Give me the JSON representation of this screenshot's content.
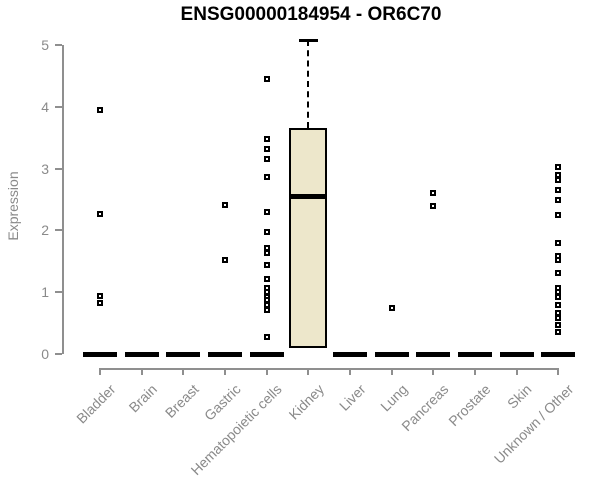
{
  "chart_data": {
    "type": "boxplot",
    "title": "ENSG00000184954 - OR6C70",
    "xlabel": "",
    "ylabel": "Expression",
    "yticks": [
      0,
      1,
      2,
      3,
      4,
      5
    ],
    "ylim": [
      0,
      5.2
    ],
    "grid": false,
    "categories": [
      "Bladder",
      "Brain",
      "Breast",
      "Gastric",
      "Hematopoietic cells",
      "Kidney",
      "Liver",
      "Lung",
      "Pancreas",
      "Prostate",
      "Skin",
      "Unknown / Other"
    ],
    "series": [
      {
        "name": "Bladder",
        "zero_bar": true,
        "outliers": [
          3.95,
          2.27,
          0.94,
          0.83
        ]
      },
      {
        "name": "Brain",
        "zero_bar": true,
        "outliers": []
      },
      {
        "name": "Breast",
        "zero_bar": true,
        "outliers": []
      },
      {
        "name": "Gastric",
        "zero_bar": true,
        "outliers": [
          2.41,
          1.52
        ]
      },
      {
        "name": "Hematopoietic cells",
        "zero_bar": true,
        "outliers": [
          4.45,
          3.48,
          3.31,
          3.16,
          2.86,
          2.3,
          1.97,
          1.71,
          1.63,
          1.44,
          1.22,
          1.07,
          1.0,
          0.93,
          0.87,
          0.79,
          0.71,
          0.28
        ]
      },
      {
        "name": "Kidney",
        "zero_bar": false,
        "box": {
          "q1": 0.1,
          "median": 2.55,
          "q3": 3.65,
          "whisker_high": 5.08
        },
        "outliers": []
      },
      {
        "name": "Liver",
        "zero_bar": true,
        "outliers": []
      },
      {
        "name": "Lung",
        "zero_bar": true,
        "outliers": [
          0.75
        ]
      },
      {
        "name": "Pancreas",
        "zero_bar": true,
        "outliers": [
          2.61,
          2.39
        ]
      },
      {
        "name": "Prostate",
        "zero_bar": true,
        "outliers": []
      },
      {
        "name": "Skin",
        "zero_bar": true,
        "outliers": []
      },
      {
        "name": "Unknown / Other",
        "zero_bar": true,
        "outliers": [
          3.03,
          2.9,
          2.81,
          2.65,
          2.49,
          2.25,
          1.79,
          1.58,
          1.52,
          1.31,
          1.07,
          1.0,
          0.93,
          0.79,
          0.66,
          0.58,
          0.47,
          0.36
        ]
      }
    ],
    "colors": {
      "box_fill": "#EDE7CB",
      "box_border": "#000000",
      "median": "#000000",
      "outlier": "#000000",
      "axis": "#8f8f8f",
      "axis_label": "#8a8a8a",
      "title": "#000000",
      "background": "#ffffff"
    }
  }
}
